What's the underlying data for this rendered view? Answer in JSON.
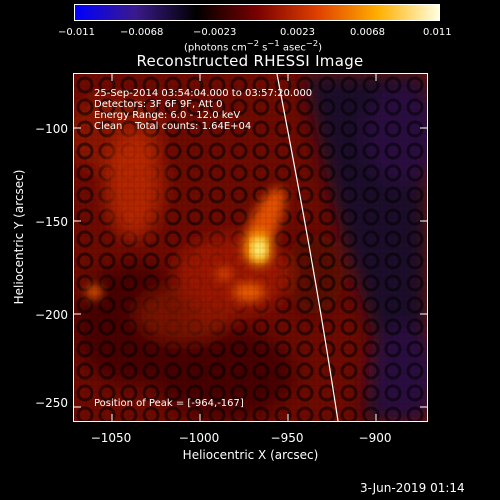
{
  "colorbar": {
    "tick_labels": [
      "−0.011",
      "−0.0068",
      "−0.0023",
      "0.0023",
      "0.0068",
      "0.011"
    ],
    "units_html": "(photons cm<sup>−2</sup> s<sup>−1</sup> asec<sup>−2</sup>)",
    "colors": [
      "#0000ff",
      "#3a1a8a",
      "#000000",
      "#7a0000",
      "#e04000",
      "#ffb000",
      "#ffffe0"
    ]
  },
  "title": "Reconstructed RHESSI Image",
  "info": {
    "time_range": "25-Sep-2014 03:54:04.000 to 03:57:20.000",
    "detectors": "Detectors: 3F 6F 9F, Att 0",
    "energy": "Energy Range: 6.0 - 12.0 keV",
    "clean": "Clean    Total counts: 1.64E+04",
    "peak": "Position of Peak = [-964,-167]"
  },
  "axes": {
    "xlabel": "Heliocentric X (arcsec)",
    "ylabel": "Heliocentric Y (arcsec)",
    "xticks": [
      "−1050",
      "−1000",
      "−950",
      "−900"
    ],
    "yticks": [
      "−100",
      "−150",
      "−200",
      "−250"
    ]
  },
  "footer": "3-Jun-2019 01:14"
}
